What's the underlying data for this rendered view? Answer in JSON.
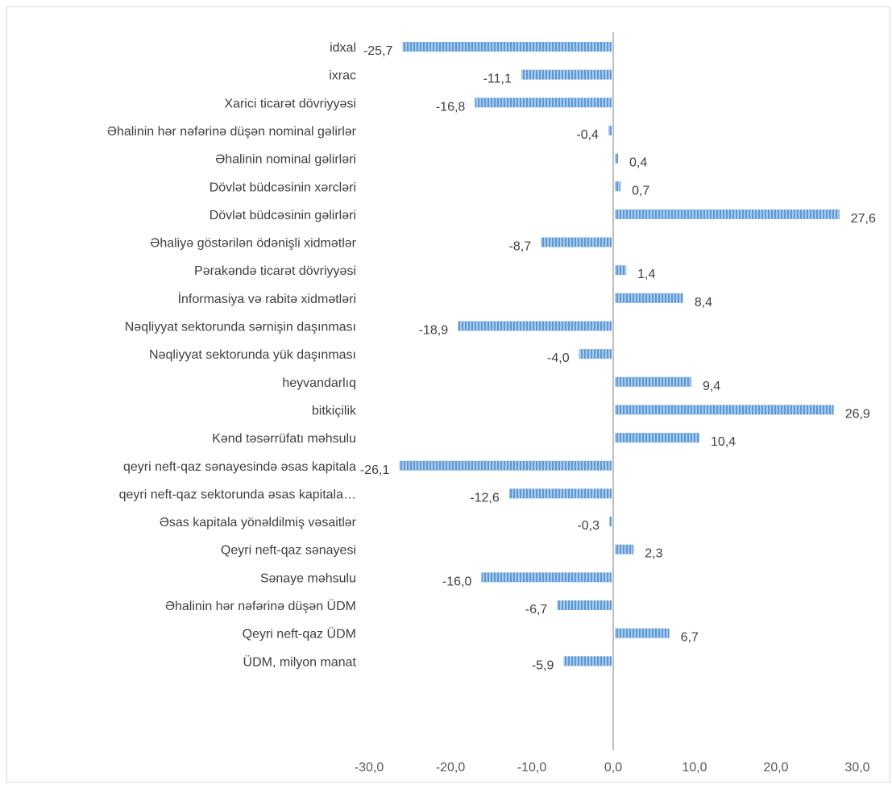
{
  "chart_data": {
    "type": "bar",
    "orientation": "horizontal",
    "categories": [
      "idxal",
      "ixrac",
      "Xarici ticarət dövriyyəsi",
      "Əhalinin hər nəfərinə düşən nominal gəlirlər",
      "Əhalinin nominal gəlirləri",
      "Dövlət büdcəsinin xərcləri",
      "Dövlət büdcəsinin gəlirləri",
      "Əhaliyə göstərilən ödənişli xidmətlər",
      "Pərakəndə ticarət dövriyyəsi",
      "İnformasiya və rabitə xidmətləri",
      "Nəqliyyat sektorunda sərnişin daşınması",
      "Nəqliyyat sektorunda yük daşınması",
      "heyvandarlıq",
      "bitkiçilik",
      "Kənd təsərrüfatı məhsulu",
      "qeyri neft-qaz sənayesində əsas kapitala",
      "qeyri neft-qaz sektorunda əsas kapitala…",
      "Əsas kapitala yönəldilmiş vəsaitlər",
      "Qeyri neft-qaz sənayesi",
      "Sənaye məhsulu",
      "Əhalinin hər nəfərinə düşən ÜDM",
      "Qeyri neft-qaz ÜDM",
      "ÜDM, milyon manat"
    ],
    "values": [
      -25.7,
      -11.1,
      -16.8,
      -0.4,
      0.4,
      0.7,
      27.6,
      -8.7,
      1.4,
      8.4,
      -18.9,
      -4.0,
      9.4,
      26.9,
      10.4,
      -26.1,
      -12.6,
      -0.3,
      2.3,
      -16.0,
      -6.7,
      6.7,
      -5.9
    ],
    "value_labels": [
      "-25,7",
      "-11,1",
      "-16,8",
      "-0,4",
      "0,4",
      "0,7",
      "27,6",
      "-8,7",
      "1,4",
      "8,4",
      "-18,9",
      "-4,0",
      "9,4",
      "26,9",
      "10,4",
      "-26,1",
      "-12,6",
      "-0,3",
      "2,3",
      "-16,0",
      "-6,7",
      "6,7",
      "-5,9"
    ],
    "xlim": [
      -30,
      30
    ],
    "x_ticks": [
      -30,
      -20,
      -10,
      0,
      10,
      20,
      30
    ],
    "x_tick_labels": [
      "-30,0",
      "-20,0",
      "-10,0",
      "0,0",
      "10,0",
      "20,0",
      "30,0"
    ],
    "grid": false,
    "legend": "none",
    "bar_color": "#5b9bd5",
    "bar_stripe_color": "#a9c8ec",
    "axis_color": "#bfbfbf",
    "label_color": "#404040"
  }
}
